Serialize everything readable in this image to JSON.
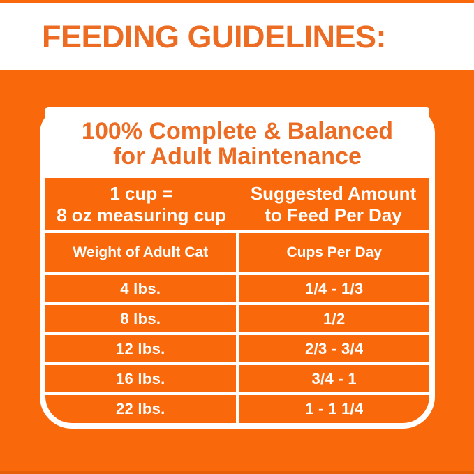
{
  "page_title": "FEEDING GUIDELINES:",
  "colors": {
    "background_orange": "#F9690C",
    "heading_orange": "#EC6C23",
    "cell_orange": "#F9690C",
    "text_white": "#FFFFFF",
    "bottom_edge_orange": "#E65F08"
  },
  "card": {
    "heading_line1": "100% Complete & Balanced",
    "heading_line2": "for Adult Maintenance",
    "band": {
      "left_line1": "1 cup =",
      "left_line2": "8 oz measuring cup",
      "right_line1": "Suggested Amount",
      "right_line2": "to Feed Per Day"
    },
    "table": {
      "columns": [
        "Weight of Adult Cat",
        "Cups Per Day"
      ],
      "rows": [
        {
          "weight": "4 lbs.",
          "cups": "1/4 - 1/3"
        },
        {
          "weight": "8 lbs.",
          "cups": "1/2"
        },
        {
          "weight": "12 lbs.",
          "cups": "2/3 - 3/4"
        },
        {
          "weight": "16 lbs.",
          "cups": "3/4 - 1"
        },
        {
          "weight": "22 lbs.",
          "cups": "1 - 1 1/4"
        }
      ]
    }
  },
  "chart_data": {
    "type": "table",
    "title": "FEEDING GUIDELINES: 100% Complete & Balanced for Adult Maintenance",
    "note": "1 cup = 8 oz measuring cup; Suggested Amount to Feed Per Day",
    "columns": [
      "Weight of Adult Cat",
      "Cups Per Day"
    ],
    "rows": [
      [
        "4 lbs.",
        "1/4 - 1/3"
      ],
      [
        "8 lbs.",
        "1/2"
      ],
      [
        "12 lbs.",
        "2/3 - 3/4"
      ],
      [
        "16 lbs.",
        "3/4 - 1"
      ],
      [
        "22 lbs.",
        "1 - 1 1/4"
      ]
    ]
  }
}
